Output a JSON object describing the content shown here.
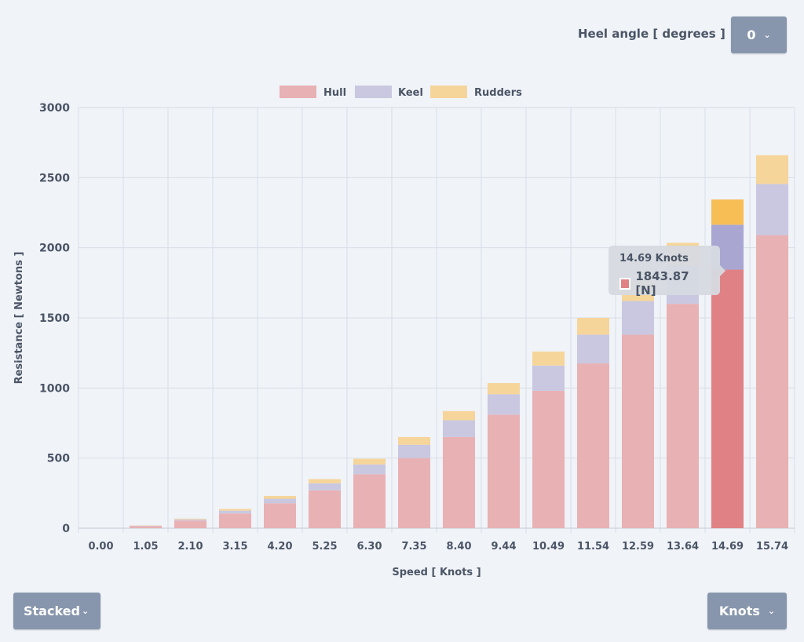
{
  "controls": {
    "heel_label": "Heel angle [ degrees ]",
    "heel_value": "0",
    "mode_value": "Stacked",
    "units_value": "Knots"
  },
  "tooltip": {
    "title": "14.69 Knots",
    "value": "1843.87 [N]"
  },
  "chart_data": {
    "type": "bar",
    "stacked": true,
    "xlabel": "Speed [ Knots ]",
    "ylabel": "Resistance [ Newtons ]",
    "ylim": [
      0,
      3000
    ],
    "yticks": [
      0,
      500,
      1000,
      1500,
      2000,
      2500,
      3000
    ],
    "grid": true,
    "legend_position": "top-center",
    "categories": [
      "0.00",
      "1.05",
      "2.10",
      "3.15",
      "4.20",
      "5.25",
      "6.30",
      "7.35",
      "8.40",
      "9.44",
      "10.49",
      "11.54",
      "12.59",
      "13.64",
      "14.69",
      "15.74"
    ],
    "highlighted_category": "14.69",
    "series": [
      {
        "name": "Hull",
        "color": "#e8b1b4",
        "highlight": "#e08285",
        "values": [
          0,
          15,
          55,
          105,
          178,
          270,
          385,
          500,
          650,
          810,
          980,
          1175,
          1380,
          1600,
          1844,
          2090
        ]
      },
      {
        "name": "Keel",
        "color": "#c9c8e0",
        "highlight": "#a9a6d2",
        "values": [
          0,
          3,
          8,
          20,
          32,
          50,
          70,
          95,
          120,
          145,
          180,
          205,
          240,
          270,
          320,
          365
        ]
      },
      {
        "name": "Rudders",
        "color": "#f6d59a",
        "highlight": "#f7be56",
        "values": [
          0,
          2,
          5,
          12,
          20,
          30,
          40,
          55,
          65,
          80,
          100,
          120,
          145,
          165,
          180,
          205
        ]
      }
    ]
  }
}
